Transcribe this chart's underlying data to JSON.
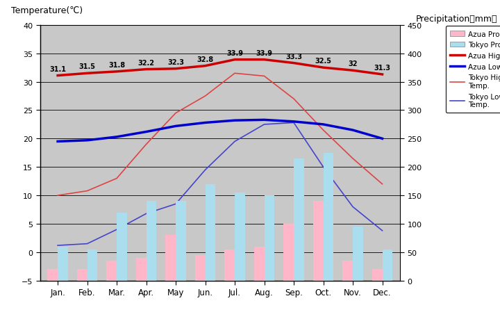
{
  "months": [
    "Jan.",
    "Feb.",
    "Mar.",
    "Apr.",
    "May",
    "Jun.",
    "Jul.",
    "Aug.",
    "Sep.",
    "Oct.",
    "Nov.",
    "Dec."
  ],
  "azua_high_temp": [
    31.1,
    31.5,
    31.8,
    32.2,
    32.3,
    32.8,
    33.9,
    33.9,
    33.3,
    32.5,
    32.0,
    31.3
  ],
  "azua_low_temp": [
    19.5,
    19.7,
    20.3,
    21.2,
    22.2,
    22.8,
    23.2,
    23.3,
    23.0,
    22.5,
    21.5,
    20.0
  ],
  "tokyo_high_temp": [
    10.0,
    10.8,
    13.0,
    19.0,
    24.5,
    27.5,
    31.5,
    31.0,
    27.0,
    21.5,
    16.5,
    12.0
  ],
  "tokyo_low_temp": [
    1.2,
    1.5,
    4.0,
    6.8,
    8.5,
    14.5,
    19.5,
    22.5,
    22.8,
    15.0,
    8.0,
    3.8
  ],
  "azua_precip_mm": [
    20,
    20,
    35,
    40,
    80,
    45,
    55,
    60,
    100,
    140,
    35,
    20
  ],
  "tokyo_precip_mm": [
    60,
    55,
    120,
    140,
    140,
    170,
    155,
    150,
    215,
    225,
    95,
    55
  ],
  "azua_high_labels": [
    "31.1",
    "31.5",
    "31.8",
    "32.2",
    "32.3",
    "32.8",
    "33.9",
    "33.9",
    "33.3",
    "32.5",
    "32",
    "31.3"
  ],
  "colors": {
    "azua_high": "#cc0000",
    "azua_low": "#0000cc",
    "tokyo_high": "#dd4444",
    "tokyo_low": "#4444cc",
    "azua_precip_bar": "#ffb6c8",
    "tokyo_precip_bar": "#aaddee",
    "background": "#c8c8c8",
    "outer_bg": "#ffffff"
  },
  "temp_ylim": [
    -5,
    40
  ],
  "precip_ylim": [
    0,
    450
  ],
  "temp_yticks": [
    -5,
    0,
    5,
    10,
    15,
    20,
    25,
    30,
    35,
    40
  ],
  "precip_yticks": [
    0,
    50,
    100,
    150,
    200,
    250,
    300,
    350,
    400,
    450
  ],
  "title_left": "Temperature(℃)",
  "title_right": "Precipitation（mm）",
  "legend_labels": [
    "Azua Prop.",
    "Tokyo Prop.",
    "Azua High Temp.",
    "Azua Low Temp.",
    "Tokyo High\nTemp.",
    "Tokyo Low\nTemp."
  ]
}
